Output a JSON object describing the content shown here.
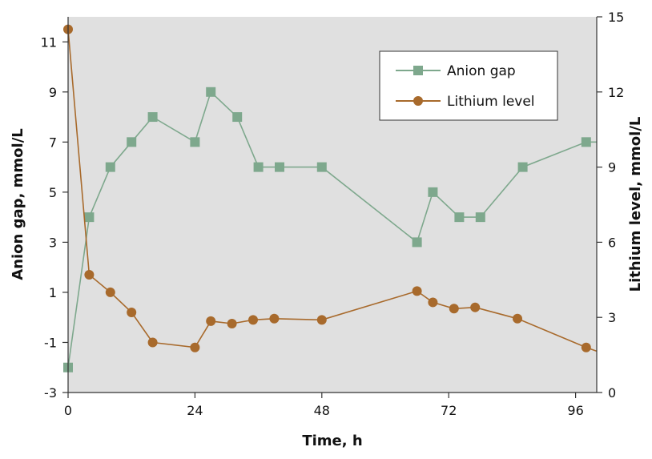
{
  "chart_data": {
    "type": "line",
    "xlabel": "Time, h",
    "ylabel_left": "Anion gap, mmol/L",
    "ylabel_right": "Lithium level, mmol/L",
    "xlim": [
      0,
      100
    ],
    "ylim_left": [
      -3,
      12
    ],
    "ylim_right": [
      0,
      15
    ],
    "x_ticks": [
      0,
      24,
      48,
      72,
      96
    ],
    "y_ticks_left": [
      -3,
      -1,
      1,
      3,
      5,
      7,
      9,
      11
    ],
    "y_ticks_right": [
      0,
      3,
      6,
      9,
      12,
      15
    ],
    "grid": false,
    "legend_position": "top-right",
    "series": [
      {
        "name": "Anion gap",
        "axis": "left",
        "color": "#7ea88d",
        "marker": "square",
        "x": [
          0,
          4,
          8,
          12,
          16,
          24,
          27,
          32,
          36,
          40,
          48,
          66,
          69,
          74,
          78,
          86,
          98,
          100
        ],
        "y": [
          -2,
          4,
          6,
          7,
          8,
          7,
          9,
          8,
          6,
          6,
          6,
          3,
          5,
          4,
          4,
          6,
          7,
          7
        ],
        "markers": [
          true,
          true,
          true,
          true,
          true,
          true,
          true,
          true,
          true,
          true,
          true,
          true,
          true,
          true,
          true,
          true,
          true,
          false
        ]
      },
      {
        "name": "Lithium level",
        "axis": "right",
        "color": "#a86a2c",
        "marker": "circle",
        "x": [
          0,
          4,
          8,
          12,
          16,
          24,
          27,
          31,
          35,
          39,
          48,
          66,
          69,
          73,
          77,
          85,
          98,
          100
        ],
        "y": [
          14.5,
          4.7,
          4.0,
          3.2,
          2.0,
          1.8,
          2.85,
          2.75,
          2.9,
          2.95,
          2.9,
          4.05,
          3.6,
          3.35,
          3.4,
          2.95,
          1.8,
          1.65
        ],
        "markers": [
          true,
          true,
          true,
          true,
          true,
          true,
          true,
          true,
          true,
          true,
          true,
          true,
          true,
          true,
          true,
          true,
          true,
          false
        ]
      }
    ]
  }
}
